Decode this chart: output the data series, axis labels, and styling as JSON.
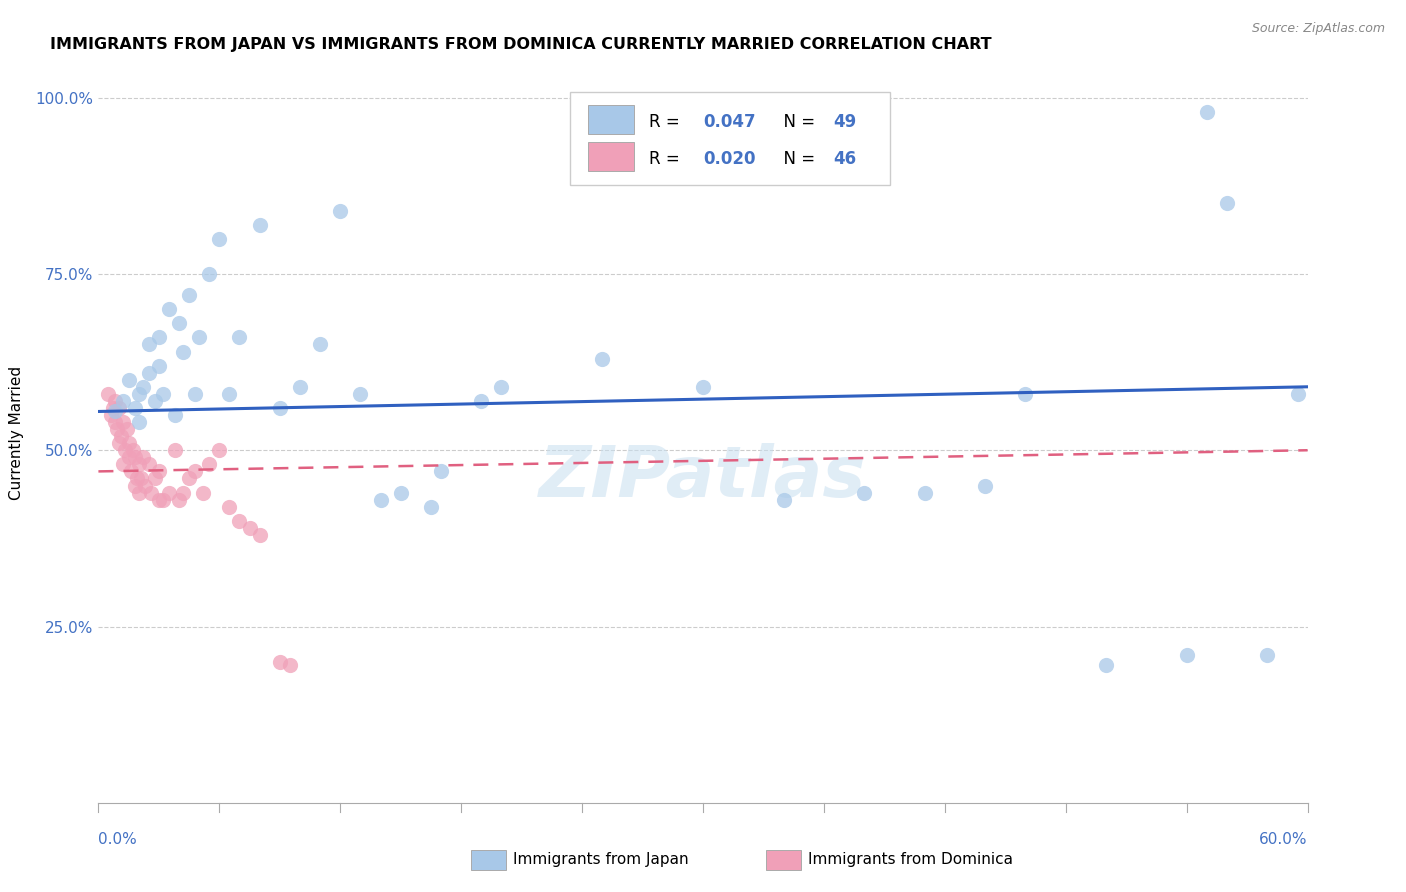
{
  "title": "IMMIGRANTS FROM JAPAN VS IMMIGRANTS FROM DOMINICA CURRENTLY MARRIED CORRELATION CHART",
  "source": "Source: ZipAtlas.com",
  "ylabel": "Currently Married",
  "xlim": [
    0.0,
    0.6
  ],
  "ylim": [
    0.0,
    1.05
  ],
  "yticks": [
    0.25,
    0.5,
    0.75,
    1.0
  ],
  "ytick_labels": [
    "25.0%",
    "50.0%",
    "75.0%",
    "100.0%"
  ],
  "japan_color": "#a8c8e8",
  "dominica_color": "#f0a0b8",
  "japan_line_color": "#3060c0",
  "dominica_line_color": "#e06080",
  "watermark": "ZIPatlas",
  "japan_x": [
    0.008,
    0.012,
    0.015,
    0.018,
    0.02,
    0.02,
    0.022,
    0.025,
    0.025,
    0.028,
    0.03,
    0.03,
    0.032,
    0.035,
    0.038,
    0.04,
    0.042,
    0.045,
    0.048,
    0.05,
    0.055,
    0.06,
    0.065,
    0.07,
    0.08,
    0.09,
    0.1,
    0.11,
    0.12,
    0.13,
    0.14,
    0.15,
    0.165,
    0.17,
    0.19,
    0.2,
    0.25,
    0.3,
    0.34,
    0.38,
    0.41,
    0.44,
    0.46,
    0.5,
    0.54,
    0.55,
    0.56,
    0.58,
    0.595
  ],
  "japan_y": [
    0.555,
    0.57,
    0.6,
    0.56,
    0.58,
    0.54,
    0.59,
    0.65,
    0.61,
    0.57,
    0.62,
    0.66,
    0.58,
    0.7,
    0.55,
    0.68,
    0.64,
    0.72,
    0.58,
    0.66,
    0.75,
    0.8,
    0.58,
    0.66,
    0.82,
    0.56,
    0.59,
    0.65,
    0.84,
    0.58,
    0.43,
    0.44,
    0.42,
    0.47,
    0.57,
    0.59,
    0.63,
    0.59,
    0.43,
    0.44,
    0.44,
    0.45,
    0.58,
    0.195,
    0.21,
    0.98,
    0.85,
    0.21,
    0.58
  ],
  "dominica_x": [
    0.005,
    0.006,
    0.007,
    0.008,
    0.008,
    0.009,
    0.01,
    0.01,
    0.011,
    0.012,
    0.012,
    0.013,
    0.014,
    0.015,
    0.015,
    0.016,
    0.017,
    0.018,
    0.018,
    0.019,
    0.02,
    0.02,
    0.021,
    0.022,
    0.023,
    0.025,
    0.026,
    0.028,
    0.03,
    0.03,
    0.032,
    0.035,
    0.038,
    0.04,
    0.042,
    0.045,
    0.048,
    0.052,
    0.055,
    0.06,
    0.065,
    0.07,
    0.075,
    0.08,
    0.09,
    0.095
  ],
  "dominica_y": [
    0.58,
    0.55,
    0.56,
    0.54,
    0.57,
    0.53,
    0.51,
    0.56,
    0.52,
    0.54,
    0.48,
    0.5,
    0.53,
    0.49,
    0.51,
    0.47,
    0.5,
    0.45,
    0.49,
    0.46,
    0.44,
    0.48,
    0.46,
    0.49,
    0.45,
    0.48,
    0.44,
    0.46,
    0.43,
    0.47,
    0.43,
    0.44,
    0.5,
    0.43,
    0.44,
    0.46,
    0.47,
    0.44,
    0.48,
    0.5,
    0.42,
    0.4,
    0.39,
    0.38,
    0.2,
    0.195
  ],
  "japan_line": [
    0.555,
    0.59
  ],
  "dominica_line": [
    0.47,
    0.5
  ],
  "legend_R_japan": "0.047",
  "legend_N_japan": "49",
  "legend_R_dominica": "0.020",
  "legend_N_dominica": "46"
}
